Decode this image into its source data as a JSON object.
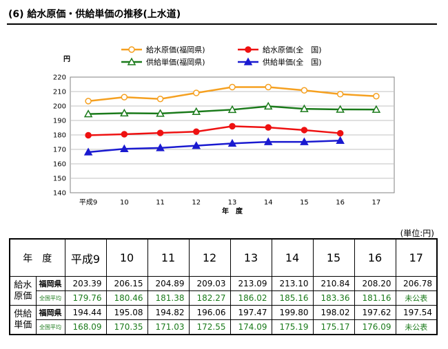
{
  "header": {
    "title": "(6)  給水原価・供給単価の推移(上水道)"
  },
  "chart_data": {
    "type": "line",
    "categories": [
      "平成9",
      "10",
      "11",
      "12",
      "13",
      "14",
      "15",
      "16",
      "17"
    ],
    "ylabel": "円",
    "xlabel": "年　度",
    "ylim": [
      140,
      220
    ],
    "yticks": [
      140,
      150,
      160,
      170,
      180,
      190,
      200,
      210,
      220
    ],
    "grid": true,
    "legend_position": "top",
    "series": [
      {
        "name": "給水原価(福岡県)",
        "color": "#f5a020",
        "marker": "circle-open",
        "values": [
          203.39,
          206.15,
          204.89,
          209.03,
          213.09,
          213.1,
          210.84,
          208.2,
          206.78
        ]
      },
      {
        "name": "給水原価(全　国)",
        "color": "#ee1111",
        "marker": "circle-filled",
        "values": [
          179.76,
          180.46,
          181.38,
          182.27,
          186.02,
          185.16,
          183.36,
          181.16,
          null
        ]
      },
      {
        "name": "供給単価(福岡県)",
        "color": "#1a7a1a",
        "marker": "triangle-open",
        "values": [
          194.44,
          195.08,
          194.82,
          196.06,
          197.47,
          199.8,
          198.02,
          197.62,
          197.54
        ]
      },
      {
        "name": "供給単価(全　国)",
        "color": "#1a1ad0",
        "marker": "triangle-filled",
        "values": [
          168.09,
          170.35,
          171.03,
          172.55,
          174.09,
          175.19,
          175.17,
          176.09,
          null
        ]
      }
    ]
  },
  "table": {
    "unit": "(単位:円)",
    "header_label": "年　度",
    "years": [
      "平成9",
      "10",
      "11",
      "12",
      "13",
      "14",
      "15",
      "16",
      "17"
    ],
    "groups": [
      {
        "label_top": "給水",
        "label_bottom": "原価",
        "rows": [
          {
            "label": "福岡県",
            "values": [
              "203.39",
              "206.15",
              "204.89",
              "209.03",
              "213.09",
              "213.10",
              "210.84",
              "208.20",
              "206.78"
            ]
          },
          {
            "label": "全国平均",
            "values": [
              "179.76",
              "180.46",
              "181.38",
              "182.27",
              "186.02",
              "185.16",
              "183.36",
              "181.16",
              "未公表"
            ]
          }
        ]
      },
      {
        "label_top": "供給",
        "label_bottom": "単価",
        "rows": [
          {
            "label": "福岡県",
            "values": [
              "194.44",
              "195.08",
              "194.82",
              "196.06",
              "197.47",
              "199.80",
              "198.02",
              "197.62",
              "197.54"
            ]
          },
          {
            "label": "全国平均",
            "values": [
              "168.09",
              "170.35",
              "171.03",
              "172.55",
              "174.09",
              "175.19",
              "175.17",
              "176.09",
              "未公表"
            ]
          }
        ]
      }
    ]
  }
}
